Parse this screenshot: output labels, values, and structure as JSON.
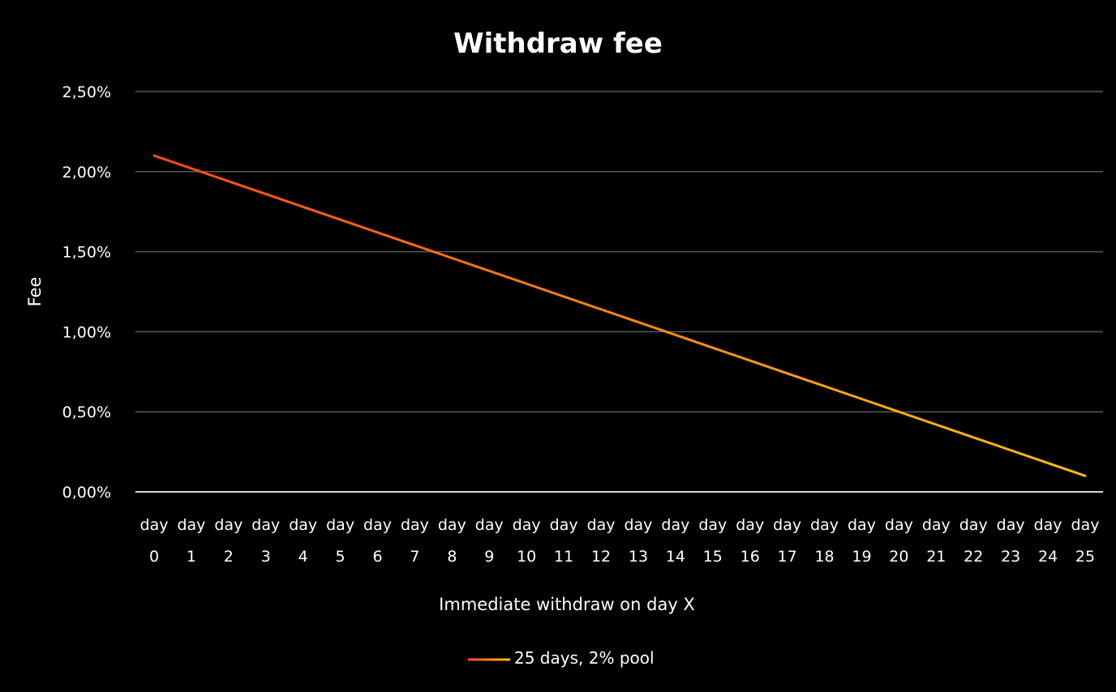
{
  "chart_data": {
    "type": "line",
    "title": "Withdraw fee",
    "xlabel": "Immediate withdraw on day X",
    "ylabel": "Fee",
    "categories": [
      [
        "day",
        "0"
      ],
      [
        "day",
        "1"
      ],
      [
        "day",
        "2"
      ],
      [
        "day",
        "3"
      ],
      [
        "day",
        "4"
      ],
      [
        "day",
        "5"
      ],
      [
        "day",
        "6"
      ],
      [
        "day",
        "7"
      ],
      [
        "day",
        "8"
      ],
      [
        "day",
        "9"
      ],
      [
        "day",
        "10"
      ],
      [
        "day",
        "11"
      ],
      [
        "day",
        "12"
      ],
      [
        "day",
        "13"
      ],
      [
        "day",
        "14"
      ],
      [
        "day",
        "15"
      ],
      [
        "day",
        "16"
      ],
      [
        "day",
        "17"
      ],
      [
        "day",
        "18"
      ],
      [
        "day",
        "19"
      ],
      [
        "day",
        "20"
      ],
      [
        "day",
        "21"
      ],
      [
        "day",
        "22"
      ],
      [
        "day",
        "23"
      ],
      [
        "day",
        "24"
      ],
      [
        "day",
        "25"
      ]
    ],
    "series": [
      {
        "name": "25 days, 2% pool",
        "values": [
          2.1,
          2.02,
          1.94,
          1.86,
          1.78,
          1.7,
          1.62,
          1.54,
          1.46,
          1.38,
          1.3,
          1.22,
          1.14,
          1.06,
          0.98,
          0.9,
          0.82,
          0.74,
          0.66,
          0.58,
          0.5,
          0.42,
          0.34,
          0.26,
          0.18,
          0.1
        ]
      }
    ],
    "ylim": [
      0,
      2.5
    ],
    "yticks": [
      0,
      0.5,
      1,
      1.5,
      2,
      2.5
    ],
    "ytick_labels": [
      "0,00%",
      "0,50%",
      "1,00%",
      "1,50%",
      "2,00%",
      "2,50%"
    ],
    "grid": "horizontal",
    "legend_position": "bottom",
    "colors": {
      "background": "#000000",
      "grid": "#595959",
      "axis": "#d9d9d9",
      "text": "#ffffff",
      "line_start": "#ff4a12",
      "line_end": "#ffc20e"
    }
  }
}
